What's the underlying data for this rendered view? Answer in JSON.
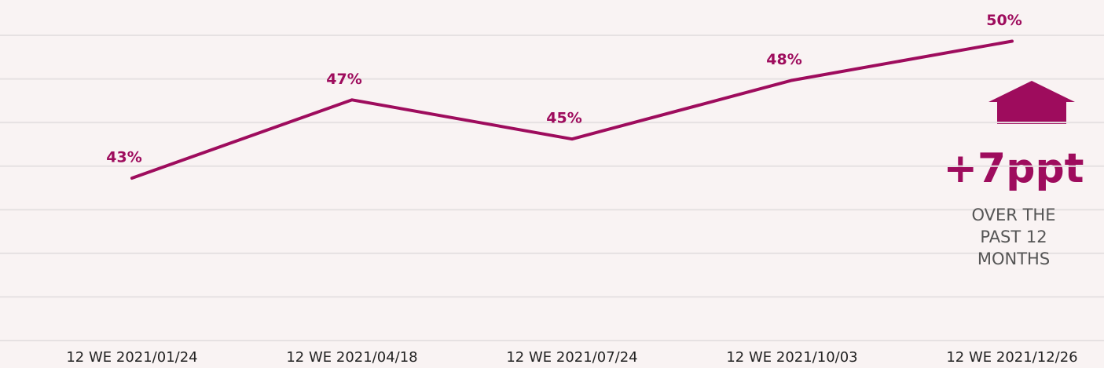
{
  "chart_data": {
    "type": "line",
    "categories": [
      "12 WE 2021/01/24",
      "12 WE 2021/04/18",
      "12 WE 2021/07/24",
      "12 WE 2021/10/03",
      "12 WE 2021/12/26"
    ],
    "series": [
      {
        "color": "#9e0c5d",
        "values": [
          43,
          47,
          45,
          48,
          50
        ],
        "value_labels": [
          "43%",
          "47%",
          "45%",
          "48%",
          "50%"
        ]
      }
    ],
    "ylim": [
      34.7,
      50.3
    ],
    "grid": true,
    "annotation": {
      "headline": "+7ppt",
      "text": "OVER THE PAST 12 MONTHS"
    }
  }
}
